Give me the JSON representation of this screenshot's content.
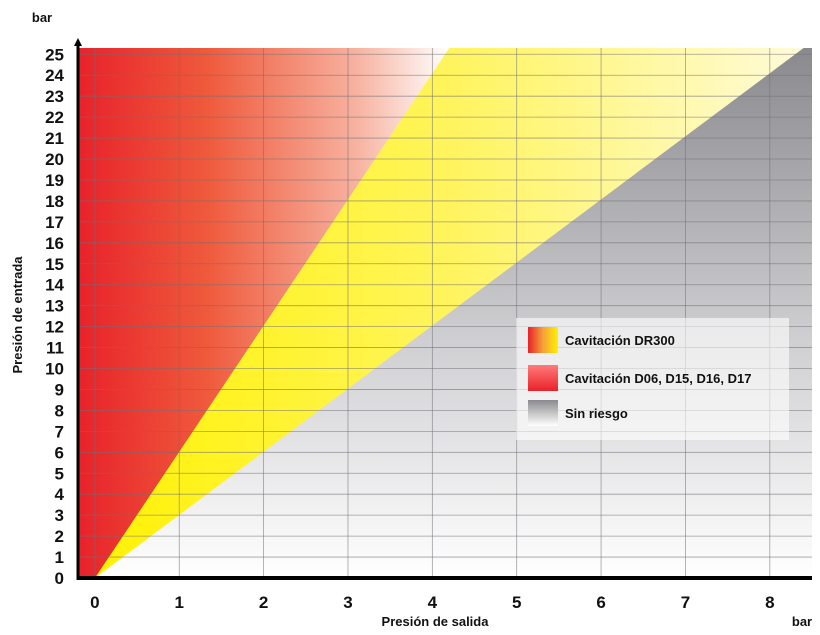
{
  "chart_data": {
    "type": "area",
    "title": "",
    "xlabel": "Presión de salida",
    "ylabel": "Presión de entrada",
    "x_unit": "bar",
    "y_unit": "bar",
    "xlim": [
      -0.2,
      8.5
    ],
    "ylim": [
      0,
      25.3
    ],
    "xticks": [
      "0",
      "1",
      "2",
      "3",
      "4",
      "5",
      "6",
      "7",
      "8"
    ],
    "yticks": [
      "0",
      "1",
      "2",
      "3",
      "4",
      "5",
      "6",
      "7",
      "8",
      "9",
      "10",
      "11",
      "12",
      "13",
      "14",
      "15",
      "16",
      "17",
      "18",
      "19",
      "20",
      "21",
      "22",
      "23",
      "24",
      "25"
    ],
    "grid": true,
    "legend_position": "right-middle",
    "regions": [
      {
        "name": "Cavitación DR300",
        "type": "boundary-line",
        "points": [
          [
            0,
            0
          ],
          [
            4.2,
            25.3
          ]
        ],
        "colors": [
          "#e8222a",
          "#fff200"
        ]
      },
      {
        "name": "Cavitación D06, D15, D16, D17",
        "type": "boundary-line",
        "points": [
          [
            0,
            0
          ],
          [
            8.4,
            25.3
          ]
        ],
        "colors": [
          "#ff6060",
          "#e8222a"
        ]
      },
      {
        "name": "Sin riesgo",
        "type": "remaining-area",
        "colors": [
          "#8a8a8e",
          "#ffffff"
        ]
      }
    ],
    "legend": [
      "Cavitación DR300",
      "Cavitación D06, D15, D16, D17",
      "Sin riesgo"
    ]
  }
}
